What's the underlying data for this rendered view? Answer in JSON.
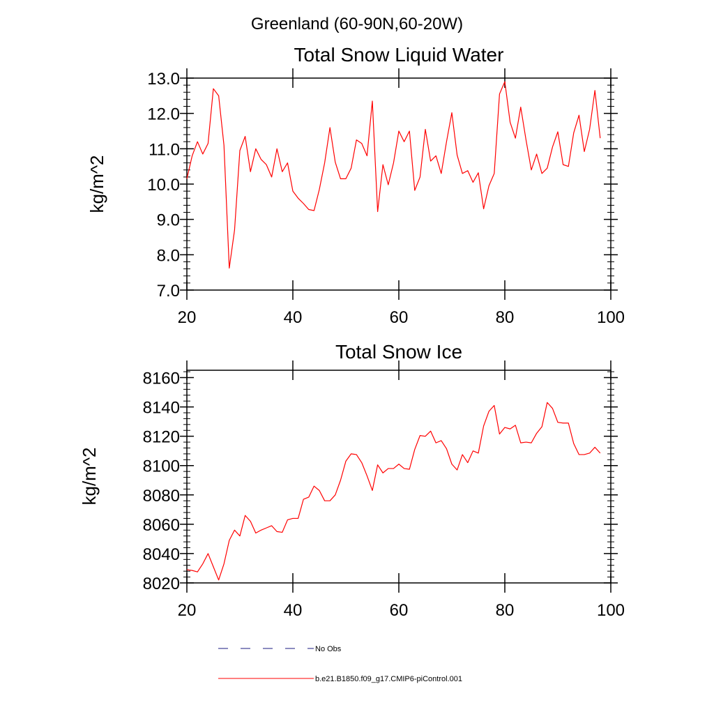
{
  "figure": {
    "suptitle": "Greenland (60-90N,60-20W)"
  },
  "chart_data": [
    {
      "type": "line",
      "title": "Total Snow Liquid Water",
      "xlabel": "",
      "ylabel": "kg/m^2",
      "xlim": [
        20,
        100
      ],
      "ylim": [
        7.0,
        13.0
      ],
      "xticks": [
        20,
        40,
        60,
        80,
        100
      ],
      "xtick_labels": [
        "20",
        "40",
        "60",
        "80",
        "100"
      ],
      "yticks": [
        7.0,
        8.0,
        9.0,
        10.0,
        11.0,
        12.0,
        13.0
      ],
      "ytick_labels": [
        "7.0",
        "8.0",
        "9.0",
        "10.0",
        "11.0",
        "12.0",
        "13.0"
      ],
      "y_minor_step": 0.2,
      "x": [
        20,
        21,
        22,
        23,
        24,
        25,
        26,
        27,
        28,
        29,
        30,
        31,
        32,
        33,
        34,
        35,
        36,
        37,
        38,
        39,
        40,
        41,
        42,
        43,
        44,
        45,
        46,
        47,
        48,
        49,
        50,
        51,
        52,
        53,
        54,
        55,
        56,
        57,
        58,
        59,
        60,
        61,
        62,
        63,
        64,
        65,
        66,
        67,
        68,
        69,
        70,
        71,
        72,
        73,
        74,
        75,
        76,
        77,
        78,
        79,
        80,
        81,
        82,
        83,
        84,
        85,
        86,
        87,
        88,
        89,
        90,
        91,
        92,
        93,
        94,
        95,
        96,
        97,
        98
      ],
      "series": [
        {
          "name": "b.e21.B1850.f09_g17.CMIP6-piControl.001",
          "color": "#ff0000",
          "values": [
            10.15,
            10.8,
            11.2,
            10.85,
            11.15,
            12.7,
            12.5,
            11.1,
            7.62,
            8.7,
            10.95,
            11.35,
            10.35,
            11.0,
            10.7,
            10.55,
            10.2,
            11.0,
            10.35,
            10.6,
            9.8,
            9.6,
            9.45,
            9.28,
            9.25,
            9.85,
            10.6,
            11.6,
            10.62,
            10.15,
            10.15,
            10.45,
            11.25,
            11.15,
            10.8,
            12.35,
            9.22,
            10.55,
            9.98,
            10.6,
            11.5,
            11.2,
            11.5,
            9.82,
            10.2,
            11.55,
            10.65,
            10.8,
            10.3,
            11.2,
            12.02,
            10.82,
            10.3,
            10.38,
            10.05,
            10.32,
            9.3,
            9.95,
            10.3,
            12.55,
            12.9,
            11.75,
            11.3,
            12.18,
            11.25,
            10.4,
            10.85,
            10.3,
            10.45,
            11.05,
            11.48,
            10.55,
            10.5,
            11.45,
            11.95,
            10.92,
            11.55,
            12.65,
            11.3
          ]
        }
      ]
    },
    {
      "type": "line",
      "title": "Total Snow Ice",
      "xlabel": "",
      "ylabel": "kg/m^2",
      "xlim": [
        20,
        100
      ],
      "ylim": [
        8020,
        8165
      ],
      "xticks": [
        20,
        40,
        60,
        80,
        100
      ],
      "xtick_labels": [
        "20",
        "40",
        "60",
        "80",
        "100"
      ],
      "yticks": [
        8020,
        8040,
        8060,
        8080,
        8100,
        8120,
        8140,
        8160
      ],
      "ytick_labels": [
        "8020",
        "8040",
        "8060",
        "8080",
        "8100",
        "8120",
        "8140",
        "8160"
      ],
      "y_minor_step": 4,
      "x": [
        20,
        21,
        22,
        23,
        24,
        25,
        26,
        27,
        28,
        29,
        30,
        31,
        32,
        33,
        34,
        35,
        36,
        37,
        38,
        39,
        40,
        41,
        42,
        43,
        44,
        45,
        46,
        47,
        48,
        49,
        50,
        51,
        52,
        53,
        54,
        55,
        56,
        57,
        58,
        59,
        60,
        61,
        62,
        63,
        64,
        65,
        66,
        67,
        68,
        69,
        70,
        71,
        72,
        73,
        74,
        75,
        76,
        77,
        78,
        79,
        80,
        81,
        82,
        83,
        84,
        85,
        86,
        87,
        88,
        89,
        90,
        91,
        92,
        93,
        94,
        95,
        96,
        97,
        98
      ],
      "series": [
        {
          "name": "b.e21.B1850.f09_g17.CMIP6-piControl.001",
          "color": "#ff0000",
          "values": [
            8029,
            8028.5,
            8027.5,
            8033,
            8040,
            8031,
            8022,
            8033,
            8049,
            8056,
            8052,
            8066,
            8062,
            8054,
            8056,
            8057.5,
            8059,
            8055,
            8054.5,
            8063,
            8064,
            8064,
            8077,
            8078.5,
            8086,
            8083,
            8076,
            8076,
            8080,
            8090,
            8103,
            8108,
            8107.5,
            8102,
            8093,
            8083,
            8100.5,
            8095,
            8098,
            8098,
            8101,
            8098,
            8097.5,
            8111,
            8120.5,
            8120,
            8123.5,
            8115.5,
            8117,
            8111.5,
            8101,
            8097,
            8107.5,
            8102,
            8110,
            8108.5,
            8127,
            8137,
            8141,
            8121.5,
            8126,
            8125,
            8127.5,
            8115.5,
            8116,
            8115.5,
            8122,
            8126.5,
            8143,
            8139,
            8129.5,
            8129,
            8129,
            8115,
            8107.5,
            8107.5,
            8108.5,
            8112.5,
            8108.5
          ]
        }
      ]
    }
  ],
  "legend": {
    "position": "bottom-center",
    "entries": [
      {
        "label": "No Obs",
        "style": "dashed",
        "color": "#1a1a80"
      },
      {
        "label": "b.e21.B1850.f09_g17.CMIP6-piControl.001",
        "style": "solid",
        "color": "#ff0000"
      }
    ]
  }
}
